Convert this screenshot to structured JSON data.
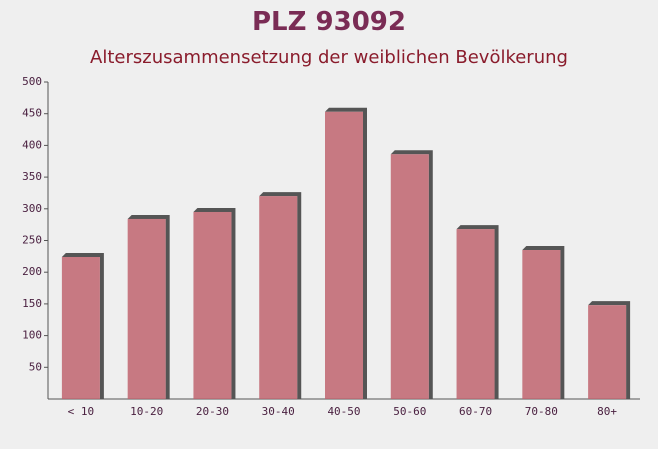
{
  "chart_data": {
    "type": "bar",
    "title": "PLZ 93092",
    "subtitle": "Alterszusammensetzung der weiblichen Bevölkerung",
    "categories": [
      "< 10",
      "10-20",
      "20-30",
      "30-40",
      "40-50",
      "50-60",
      "60-70",
      "70-80",
      "80+"
    ],
    "values": [
      224,
      284,
      295,
      320,
      453,
      386,
      268,
      235,
      148
    ],
    "color": "#c0646e",
    "ylim": [
      0,
      500
    ],
    "yticks": [
      50,
      100,
      150,
      200,
      250,
      300,
      350,
      400,
      450,
      500
    ],
    "grid": false
  }
}
